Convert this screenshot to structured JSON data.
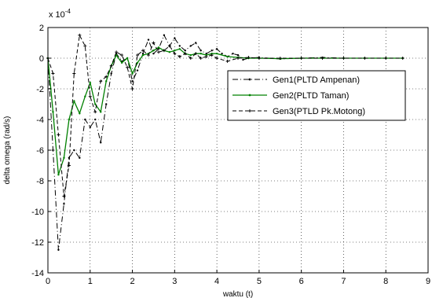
{
  "chart_data": {
    "type": "line",
    "title": "",
    "xlabel": "waktu (t)",
    "ylabel": "delta omega (rad/s)",
    "y_multiplier": "x 10",
    "y_multiplier_exp": "-4",
    "xlim": [
      0,
      9
    ],
    "ylim": [
      -14,
      2
    ],
    "xticks": [
      0,
      1,
      2,
      3,
      4,
      5,
      6,
      7,
      8,
      9
    ],
    "yticks": [
      2,
      0,
      -2,
      -4,
      -6,
      -8,
      -10,
      -12,
      -14
    ],
    "grid": true,
    "legend_position": "center-right",
    "series": [
      {
        "name": "Gen1(PLTD Ampenan)",
        "color": "#000000",
        "dash": "dashdot",
        "marker": "dot",
        "points": [
          [
            0,
            0
          ],
          [
            0.12,
            -6
          ],
          [
            0.25,
            -12.5
          ],
          [
            0.38,
            -9.5
          ],
          [
            0.5,
            -6.5
          ],
          [
            0.62,
            -6
          ],
          [
            0.75,
            -6.5
          ],
          [
            0.88,
            -4
          ],
          [
            1.0,
            -4.5
          ],
          [
            1.12,
            -4
          ],
          [
            1.25,
            -5.5
          ],
          [
            1.38,
            -3
          ],
          [
            1.5,
            -1
          ],
          [
            1.62,
            0.3
          ],
          [
            1.75,
            -0.2
          ],
          [
            1.88,
            0
          ],
          [
            2.0,
            -1.5
          ],
          [
            2.12,
            -0.8
          ],
          [
            2.25,
            0.3
          ],
          [
            2.38,
            1.2
          ],
          [
            2.5,
            0.3
          ],
          [
            2.62,
            0.6
          ],
          [
            2.75,
            1.5
          ],
          [
            2.88,
            0.8
          ],
          [
            3.0,
            1.3
          ],
          [
            3.12,
            0.8
          ],
          [
            3.25,
            0.5
          ],
          [
            3.38,
            0.8
          ],
          [
            3.5,
            1
          ],
          [
            3.62,
            0.5
          ],
          [
            3.75,
            0.3
          ],
          [
            3.88,
            0.5
          ],
          [
            4.0,
            0.6
          ],
          [
            4.12,
            0.3
          ],
          [
            4.25,
            0.1
          ],
          [
            4.38,
            0.3
          ],
          [
            4.5,
            0.2
          ],
          [
            4.62,
            -0.1
          ],
          [
            4.75,
            0
          ],
          [
            5.0,
            0.05
          ],
          [
            5.5,
            -0.05
          ],
          [
            6.0,
            0
          ],
          [
            6.5,
            0.05
          ],
          [
            7.0,
            0
          ],
          [
            7.5,
            0
          ],
          [
            8.0,
            0
          ],
          [
            8.4,
            0
          ]
        ]
      },
      {
        "name": "Gen2(PLTD Taman)",
        "color": "#008000",
        "dash": "solid",
        "marker": "dot",
        "points": [
          [
            0,
            0
          ],
          [
            0.12,
            -3.5
          ],
          [
            0.25,
            -7.6
          ],
          [
            0.38,
            -6.5
          ],
          [
            0.5,
            -4
          ],
          [
            0.62,
            -2.8
          ],
          [
            0.75,
            -3.6
          ],
          [
            0.88,
            -2.5
          ],
          [
            1.0,
            -1.6
          ],
          [
            1.12,
            -3
          ],
          [
            1.25,
            -3.5
          ],
          [
            1.38,
            -1.5
          ],
          [
            1.5,
            -0.5
          ],
          [
            1.62,
            0.2
          ],
          [
            1.75,
            -0.3
          ],
          [
            1.88,
            0
          ],
          [
            2.0,
            -1
          ],
          [
            2.12,
            -0.3
          ],
          [
            2.25,
            0.2
          ],
          [
            2.38,
            0.3
          ],
          [
            2.5,
            0.5
          ],
          [
            2.62,
            0.7
          ],
          [
            2.75,
            0.5
          ],
          [
            2.88,
            0.4
          ],
          [
            3.0,
            0.5
          ],
          [
            3.12,
            0.6
          ],
          [
            3.25,
            0.3
          ],
          [
            3.38,
            0.2
          ],
          [
            3.5,
            0.3
          ],
          [
            3.62,
            0.3
          ],
          [
            3.75,
            0.2
          ],
          [
            3.88,
            0.3
          ],
          [
            4.0,
            0.3
          ],
          [
            4.25,
            0.1
          ],
          [
            4.5,
            0.05
          ],
          [
            4.75,
            0
          ],
          [
            5.0,
            0
          ],
          [
            5.5,
            -0.03
          ],
          [
            6.0,
            0
          ],
          [
            6.5,
            0
          ],
          [
            7.0,
            0
          ],
          [
            7.5,
            0
          ],
          [
            8.0,
            0
          ],
          [
            8.4,
            0
          ]
        ]
      },
      {
        "name": "Gen3(PTLD Pk.Motong)",
        "color": "#000000",
        "dash": "dashed",
        "marker": "plus",
        "points": [
          [
            0,
            0
          ],
          [
            0.12,
            -1
          ],
          [
            0.25,
            -5
          ],
          [
            0.38,
            -9
          ],
          [
            0.5,
            -7
          ],
          [
            0.62,
            -1
          ],
          [
            0.75,
            1.5
          ],
          [
            0.88,
            0.8
          ],
          [
            1.0,
            -2.5
          ],
          [
            1.12,
            -3.5
          ],
          [
            1.25,
            -1.5
          ],
          [
            1.38,
            -1.2
          ],
          [
            1.5,
            -0.5
          ],
          [
            1.62,
            0.4
          ],
          [
            1.75,
            0.2
          ],
          [
            1.88,
            -0.6
          ],
          [
            2.0,
            -2.0
          ],
          [
            2.12,
            0.2
          ],
          [
            2.25,
            0.5
          ],
          [
            2.38,
            0.2
          ],
          [
            2.5,
            1.0
          ],
          [
            2.62,
            0.4
          ],
          [
            2.75,
            0.5
          ],
          [
            2.88,
            0.8
          ],
          [
            3.0,
            0.3
          ],
          [
            3.12,
            0.1
          ],
          [
            3.25,
            0.3
          ],
          [
            3.38,
            0
          ],
          [
            3.5,
            0.3
          ],
          [
            3.62,
            0
          ],
          [
            3.75,
            0.1
          ],
          [
            3.88,
            0.2
          ],
          [
            4.0,
            0
          ],
          [
            4.25,
            -0.2
          ],
          [
            4.5,
            0
          ],
          [
            4.75,
            0.05
          ],
          [
            5.0,
            0
          ],
          [
            5.5,
            0
          ],
          [
            6.0,
            0
          ],
          [
            6.5,
            0
          ],
          [
            7.0,
            0
          ],
          [
            7.5,
            0
          ],
          [
            8.0,
            0
          ],
          [
            8.4,
            0
          ]
        ]
      }
    ]
  }
}
